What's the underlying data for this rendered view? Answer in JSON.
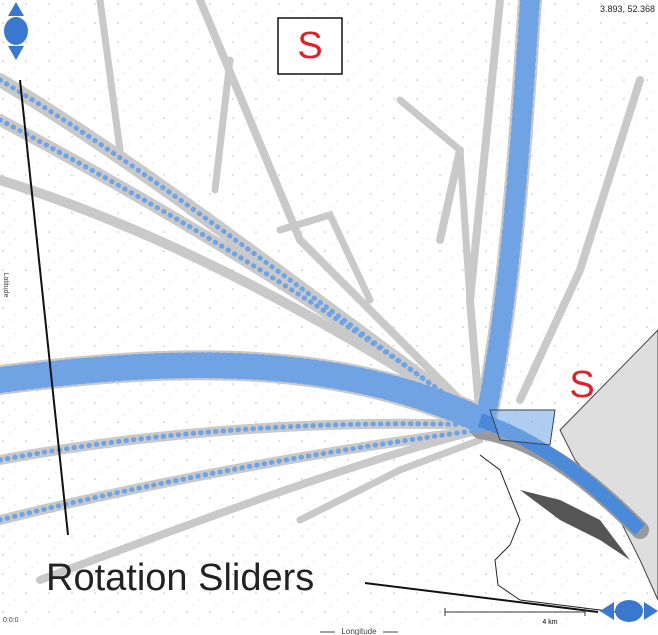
{
  "coordinates": "3.893, 52.368",
  "markers": [
    "S",
    "S"
  ],
  "annotation": "Rotation Sliders",
  "axes": {
    "x": "Longitude",
    "y": "Latitude"
  },
  "time": "0:0:0",
  "scale": "4 km"
}
